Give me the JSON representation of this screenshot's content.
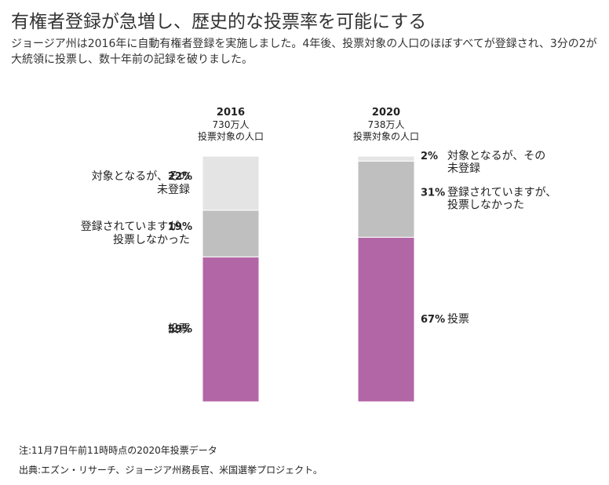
{
  "title": "有権者登録が急増し、歴史的な投票率を可能にする",
  "subtitle": "ジョージア州は2016年に自動有権者登録を実施しました。4年後、投票対象の人口のほぼすべてが登録され、3分の2が大統領に投票し、数十年前の記録を破りました。",
  "chart_data": {
    "type": "bar",
    "stacked": true,
    "unit": "%",
    "categories": [
      "2016",
      "2020"
    ],
    "category_subtitles": [
      [
        "730万人",
        "投票対象の人口"
      ],
      [
        "738万人",
        "投票対象の人口"
      ]
    ],
    "series": [
      {
        "name": "投票",
        "label_lines": [
          "投票"
        ],
        "values": [
          59,
          67
        ],
        "color": "#b366a6"
      },
      {
        "name": "登録されていますが、投票しなかった",
        "label_lines": [
          "登録されていますが、",
          "投票しなかった"
        ],
        "values": [
          19,
          31
        ],
        "color": "#bfbfbf"
      },
      {
        "name": "対象となるが、その未登録",
        "label_lines": [
          "対象となるが、その",
          "未登録"
        ],
        "values": [
          22,
          2
        ],
        "color": "#e4e4e4"
      }
    ],
    "ylim": [
      0,
      100
    ]
  },
  "notes": {
    "note": "注:11月7日午前11時時点の2020年投票データ",
    "source": "出典:エズン・リサーチ、ジョージア州務長官、米国選挙プロジェクト。"
  }
}
